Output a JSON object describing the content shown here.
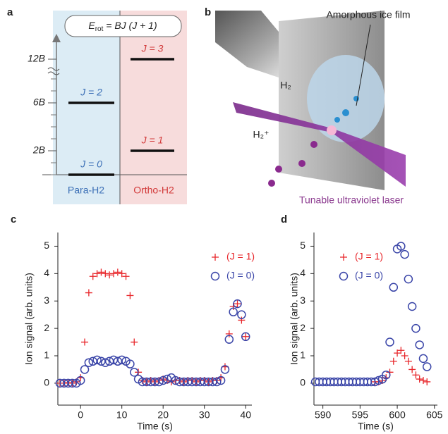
{
  "panel_a": {
    "label": "a",
    "formula": {
      "symbol": "E",
      "subscript": "rot",
      "rest": " = BJ (J + 1)"
    },
    "yticks": [
      {
        "value": 2,
        "label": "2B"
      },
      {
        "value": 6,
        "label": "6B"
      },
      {
        "value": 12,
        "label": "12B"
      }
    ],
    "para": {
      "title": "Para-H2",
      "color": "#3b6fb6",
      "levels": [
        {
          "label": "J = 0",
          "energy": 0
        },
        {
          "label": "J = 2",
          "energy": 6
        }
      ]
    },
    "ortho": {
      "title": "Ortho-H2",
      "color": "#d23a3a",
      "levels": [
        {
          "label": "J = 1",
          "energy": 2
        },
        {
          "label": "J = 3",
          "energy": 12
        }
      ]
    }
  },
  "panel_b": {
    "label": "b",
    "film": "Amorphous ice film",
    "molecule": "H₂",
    "ion": "H₂⁺",
    "laser": "Tunable ultraviolet laser"
  },
  "chart_data": [
    {
      "type": "scatter",
      "label": "c",
      "xlabel": "Time (s)",
      "ylabel": "Ion signal (arb. units)",
      "xlim": [
        -5.5,
        41.5
      ],
      "ylim": [
        -0.8,
        5.5
      ],
      "xticks": [
        0,
        10,
        20,
        30,
        40
      ],
      "yticks": [
        0,
        1,
        2,
        3,
        4,
        5
      ],
      "series": [
        {
          "name": "(J = 1)",
          "color": "#e8262a",
          "marker": "plus",
          "x": [
            -5,
            -4,
            -3,
            -2,
            -1,
            0,
            1,
            2,
            3,
            4,
            5,
            6,
            7,
            8,
            9,
            10,
            11,
            12,
            13,
            14,
            15,
            16,
            17,
            18,
            19,
            20,
            21,
            22,
            23,
            24,
            25,
            26,
            27,
            28,
            29,
            30,
            31,
            32,
            33,
            34,
            35,
            36,
            37,
            38,
            39,
            40
          ],
          "values": [
            0,
            0,
            0.02,
            0,
            0.05,
            0.2,
            1.5,
            3.3,
            3.9,
            4,
            4.05,
            4,
            3.95,
            4,
            4.05,
            4,
            3.9,
            3.2,
            1.5,
            0.4,
            0.1,
            0.05,
            0.1,
            0.05,
            0.1,
            0.15,
            0.1,
            0.05,
            0.1,
            0.1,
            0.05,
            0.1,
            0.1,
            0.05,
            0.1,
            0.1,
            0.05,
            0.1,
            0.1,
            0.2,
            0.6,
            1.8,
            2.8,
            2.9,
            2.3,
            1.7
          ]
        },
        {
          "name": "(J = 0)",
          "color": "#3a45a8",
          "marker": "circle",
          "x": [
            -5,
            -4,
            -3,
            -2,
            -1,
            0,
            1,
            2,
            3,
            4,
            5,
            6,
            7,
            8,
            9,
            10,
            11,
            12,
            13,
            14,
            15,
            16,
            17,
            18,
            19,
            20,
            21,
            22,
            23,
            24,
            25,
            26,
            27,
            28,
            29,
            30,
            31,
            32,
            33,
            34,
            35,
            36,
            37,
            38,
            39,
            40
          ],
          "values": [
            0,
            0,
            0,
            0,
            0,
            0.1,
            0.5,
            0.75,
            0.8,
            0.85,
            0.8,
            0.75,
            0.8,
            0.85,
            0.8,
            0.85,
            0.8,
            0.7,
            0.4,
            0.15,
            0.05,
            0.05,
            0.05,
            0.05,
            0.05,
            0.1,
            0.15,
            0.2,
            0.1,
            0.05,
            0.05,
            0.05,
            0.05,
            0.05,
            0.05,
            0.05,
            0.05,
            0.05,
            0.05,
            0.1,
            0.5,
            1.6,
            2.6,
            2.9,
            2.5,
            1.7
          ]
        }
      ]
    },
    {
      "type": "scatter",
      "label": "d",
      "xlabel": "Time (s)",
      "ylabel": "Ion signal (arb. units)",
      "xlim": [
        588.8,
        605.4
      ],
      "ylim": [
        -0.8,
        5.5
      ],
      "xticks": [
        590,
        595,
        600,
        605
      ],
      "yticks": [
        0,
        1,
        2,
        3,
        4,
        5
      ],
      "series": [
        {
          "name": "(J = 1)",
          "color": "#e8262a",
          "marker": "plus",
          "x": [
            597,
            597.5,
            598,
            598.5,
            599,
            599.5,
            600,
            600.5,
            601,
            601.5,
            602,
            602.5,
            603,
            603.5,
            604
          ],
          "values": [
            0.05,
            0.05,
            0.1,
            0.2,
            0.4,
            0.8,
            1.1,
            1.2,
            1,
            0.8,
            0.5,
            0.3,
            0.15,
            0.1,
            0.05
          ]
        },
        {
          "name": "(J = 0)",
          "color": "#3a45a8",
          "marker": "circle",
          "x": [
            589,
            589.5,
            590,
            590.5,
            591,
            591.5,
            592,
            592.5,
            593,
            593.5,
            594,
            594.5,
            595,
            595.5,
            596,
            596.5,
            597,
            597.5,
            598,
            598.5,
            599,
            599.5,
            600,
            600.5,
            601,
            601.5,
            602,
            602.5,
            603,
            603.5,
            604
          ],
          "values": [
            0.05,
            0.05,
            0.05,
            0.05,
            0.05,
            0.05,
            0.05,
            0.05,
            0.05,
            0.05,
            0.05,
            0.05,
            0.05,
            0.05,
            0.05,
            0.05,
            0.05,
            0.1,
            0.15,
            0.3,
            1.5,
            3.5,
            4.9,
            5,
            4.7,
            3.8,
            2.8,
            2,
            1.4,
            0.9,
            0.6
          ]
        }
      ]
    }
  ]
}
